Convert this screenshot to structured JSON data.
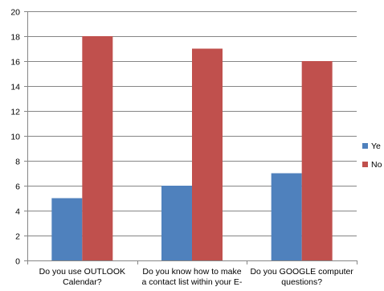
{
  "chart_data": {
    "type": "bar",
    "title": "",
    "xlabel": "",
    "ylabel": "",
    "ylim": [
      0,
      20
    ],
    "ytick_step": 2,
    "yticks": [
      "0",
      "2",
      "4",
      "6",
      "8",
      "10",
      "12",
      "14",
      "16",
      "18",
      "20"
    ],
    "grid": true,
    "legend_position": "right",
    "categories": [
      [
        "Do you use OUTLOOK",
        "Calendar?"
      ],
      [
        "Do you know how to make",
        "a contact list within your E-"
      ],
      [
        "Do you GOOGLE computer",
        "questions?"
      ]
    ],
    "series": [
      {
        "name": "Ye",
        "color": "#4F81BD",
        "values": [
          5,
          6,
          7
        ]
      },
      {
        "name": "No",
        "color": "#C0504D",
        "values": [
          18,
          17,
          16
        ]
      }
    ]
  }
}
